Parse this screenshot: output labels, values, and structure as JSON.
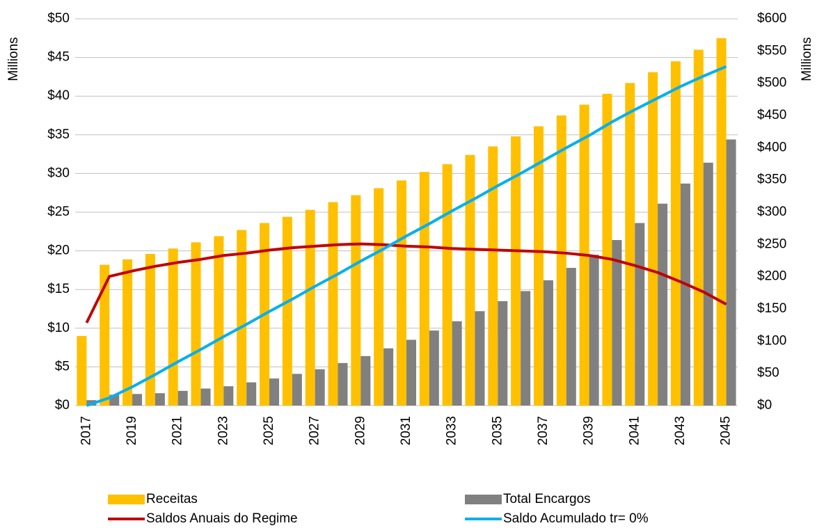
{
  "chart_data": {
    "type": "bar",
    "categories": [
      "2017",
      null,
      "2019",
      null,
      "2021",
      null,
      "2023",
      null,
      "2025",
      null,
      "2027",
      null,
      "2029",
      null,
      "2031",
      null,
      "2033",
      null,
      "2035",
      null,
      "2037",
      null,
      "2039",
      null,
      "2041",
      null,
      "2043",
      null,
      "2045"
    ],
    "y_label": "Millions",
    "y2_label": "Millions",
    "ylim": [
      0,
      50
    ],
    "yticks": [
      {
        "value": 0,
        "label": "$0"
      },
      {
        "value": 5,
        "label": "$5"
      },
      {
        "value": 10,
        "label": "$10"
      },
      {
        "value": 15,
        "label": "$15"
      },
      {
        "value": 20,
        "label": "$20"
      },
      {
        "value": 25,
        "label": "$25"
      },
      {
        "value": 30,
        "label": "$30"
      },
      {
        "value": 35,
        "label": "$35"
      },
      {
        "value": 40,
        "label": "$40"
      },
      {
        "value": 45,
        "label": "$45"
      },
      {
        "value": 50,
        "label": "$50"
      }
    ],
    "y2lim": [
      0,
      600
    ],
    "y2ticks": [
      {
        "value": 0,
        "label": "$0"
      },
      {
        "value": 50,
        "label": "$50"
      },
      {
        "value": 100,
        "label": "$100"
      },
      {
        "value": 150,
        "label": "$150"
      },
      {
        "value": 200,
        "label": "$200"
      },
      {
        "value": 250,
        "label": "$250"
      },
      {
        "value": 300,
        "label": "$300"
      },
      {
        "value": 350,
        "label": "$350"
      },
      {
        "value": 400,
        "label": "$400"
      },
      {
        "value": 450,
        "label": "$450"
      },
      {
        "value": 500,
        "label": "$500"
      },
      {
        "value": 550,
        "label": "$550"
      },
      {
        "value": 600,
        "label": "$600"
      }
    ],
    "grid": true,
    "legend": "bottom",
    "series": [
      {
        "name": "Receitas",
        "type": "bar",
        "color": "#FFC000",
        "values": [
          9.0,
          18.2,
          18.9,
          19.6,
          20.3,
          21.1,
          21.9,
          22.7,
          23.6,
          24.4,
          25.3,
          26.3,
          27.2,
          28.1,
          29.1,
          30.2,
          31.2,
          32.4,
          33.5,
          34.8,
          36.1,
          37.5,
          38.9,
          40.3,
          41.7,
          43.1,
          44.5,
          46.0,
          47.5
        ]
      },
      {
        "name": "Total Encargos",
        "type": "bar",
        "color": "#808080",
        "values": [
          0.7,
          1.4,
          1.5,
          1.6,
          1.9,
          2.2,
          2.5,
          3.0,
          3.5,
          4.1,
          4.7,
          5.5,
          6.4,
          7.4,
          8.5,
          9.7,
          10.9,
          12.2,
          13.5,
          14.8,
          16.2,
          17.8,
          19.5,
          21.4,
          23.6,
          26.1,
          28.7,
          31.4,
          34.4
        ]
      },
      {
        "name": "Saldos Anuais do Regime",
        "type": "line",
        "color": "#C00000",
        "values": [
          10.7,
          16.7,
          17.4,
          18.0,
          18.5,
          18.9,
          19.4,
          19.7,
          20.1,
          20.4,
          20.6,
          20.8,
          20.9,
          20.8,
          20.6,
          20.5,
          20.3,
          20.2,
          20.1,
          20.0,
          19.9,
          19.7,
          19.4,
          18.9,
          18.1,
          17.2,
          16.0,
          14.7,
          13.1
        ]
      },
      {
        "name": "Saldo Acumulado tr= 0%",
        "type": "line",
        "axis": "y2",
        "color": "#00B0F0",
        "values": [
          0,
          12,
          29,
          48,
          68,
          87,
          107,
          126,
          146,
          165,
          185,
          204,
          224,
          243,
          263,
          282,
          302,
          321,
          341,
          360,
          380,
          400,
          419,
          440,
          459,
          477,
          495,
          511,
          526
        ]
      }
    ]
  }
}
